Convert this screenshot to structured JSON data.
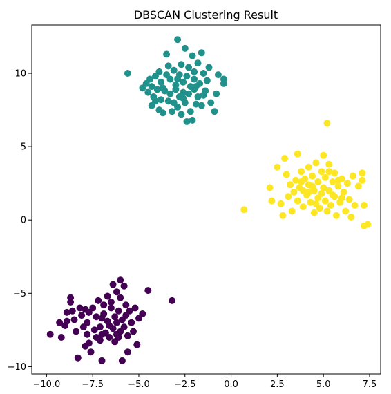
{
  "chart_data": {
    "type": "scatter",
    "title": "DBSCAN Clustering Result",
    "xlabel": "",
    "ylabel": "",
    "xlim": [
      -10.8,
      8.1
    ],
    "ylim": [
      -10.5,
      13.3
    ],
    "xticks": [
      -10.0,
      -7.5,
      -5.0,
      -2.5,
      0.0,
      2.5,
      5.0,
      7.5
    ],
    "xtick_labels": [
      "−10.0",
      "−7.5",
      "−5.0",
      "−2.5",
      "0.0",
      "2.5",
      "5.0",
      "7.5"
    ],
    "yticks": [
      -10,
      -5,
      0,
      5,
      10
    ],
    "ytick_labels": [
      "−10",
      "−5",
      "0",
      "5",
      "10"
    ],
    "grid": false,
    "legend": "none",
    "colors": {
      "cluster_0": "#440154",
      "cluster_1": "#21918c",
      "cluster_2": "#fde725",
      "axis": "#000000",
      "background": "#ffffff"
    },
    "series": [
      {
        "color": "#440154",
        "points": [
          [
            -9.8,
            -7.8
          ],
          [
            -9.3,
            -7.0
          ],
          [
            -9.2,
            -8.0
          ],
          [
            -9.0,
            -7.2
          ],
          [
            -8.9,
            -6.9
          ],
          [
            -8.9,
            -6.3
          ],
          [
            -8.7,
            -5.3
          ],
          [
            -8.7,
            -5.6
          ],
          [
            -8.6,
            -6.2
          ],
          [
            -8.5,
            -6.8
          ],
          [
            -8.4,
            -7.6
          ],
          [
            -8.3,
            -9.4
          ],
          [
            -8.2,
            -6.0
          ],
          [
            -8.1,
            -6.5
          ],
          [
            -8.0,
            -7.3
          ],
          [
            -7.9,
            -8.6
          ],
          [
            -7.9,
            -6.1
          ],
          [
            -7.8,
            -7.0
          ],
          [
            -7.8,
            -7.8
          ],
          [
            -7.7,
            -6.3
          ],
          [
            -7.7,
            -8.4
          ],
          [
            -7.6,
            -9.0
          ],
          [
            -7.5,
            -6.0
          ],
          [
            -7.4,
            -7.5
          ],
          [
            -7.3,
            -6.6
          ],
          [
            -7.3,
            -8.0
          ],
          [
            -7.2,
            -5.5
          ],
          [
            -7.1,
            -7.3
          ],
          [
            -7.1,
            -8.2
          ],
          [
            -7.0,
            -6.7
          ],
          [
            -7.0,
            -9.6
          ],
          [
            -6.9,
            -5.8
          ],
          [
            -6.9,
            -6.4
          ],
          [
            -6.8,
            -7.7
          ],
          [
            -6.7,
            -6.9
          ],
          [
            -6.7,
            -5.2
          ],
          [
            -6.6,
            -7.2
          ],
          [
            -6.6,
            -8.0
          ],
          [
            -6.5,
            -6.0
          ],
          [
            -6.5,
            -5.6
          ],
          [
            -6.4,
            -4.4
          ],
          [
            -6.4,
            -7.4
          ],
          [
            -6.3,
            -6.6
          ],
          [
            -6.3,
            -8.3
          ],
          [
            -6.2,
            -4.9
          ],
          [
            -6.2,
            -7.0
          ],
          [
            -6.1,
            -6.2
          ],
          [
            -6.1,
            -8.0
          ],
          [
            -6.0,
            -4.1
          ],
          [
            -6.0,
            -5.3
          ],
          [
            -6.0,
            -7.6
          ],
          [
            -5.9,
            -6.8
          ],
          [
            -5.9,
            -9.6
          ],
          [
            -5.8,
            -4.5
          ],
          [
            -5.8,
            -7.3
          ],
          [
            -5.7,
            -5.8
          ],
          [
            -5.7,
            -6.5
          ],
          [
            -5.6,
            -9.0
          ],
          [
            -5.6,
            -7.9
          ],
          [
            -5.5,
            -6.2
          ],
          [
            -5.4,
            -7.0
          ],
          [
            -5.3,
            -7.6
          ],
          [
            -5.2,
            -6.0
          ],
          [
            -5.1,
            -8.5
          ],
          [
            -5.0,
            -6.7
          ],
          [
            -4.8,
            -6.4
          ],
          [
            -4.5,
            -4.8
          ],
          [
            -3.2,
            -5.5
          ],
          [
            -6.2,
            -7.8
          ],
          [
            -7.0,
            -7.8
          ]
        ]
      },
      {
        "color": "#21918c",
        "points": [
          [
            -5.6,
            10.0
          ],
          [
            -4.8,
            9.0
          ],
          [
            -4.6,
            9.3
          ],
          [
            -4.5,
            8.7
          ],
          [
            -4.4,
            9.6
          ],
          [
            -4.3,
            9.1
          ],
          [
            -4.3,
            7.8
          ],
          [
            -4.2,
            8.4
          ],
          [
            -4.1,
            9.8
          ],
          [
            -4.0,
            8.9
          ],
          [
            -3.9,
            10.1
          ],
          [
            -3.9,
            7.5
          ],
          [
            -3.8,
            8.2
          ],
          [
            -3.8,
            9.4
          ],
          [
            -3.7,
            7.3
          ],
          [
            -3.6,
            8.8
          ],
          [
            -3.5,
            11.3
          ],
          [
            -3.5,
            9.9
          ],
          [
            -3.4,
            8.1
          ],
          [
            -3.3,
            8.6
          ],
          [
            -3.3,
            9.6
          ],
          [
            -3.2,
            7.4
          ],
          [
            -3.1,
            10.2
          ],
          [
            -3.0,
            8.9
          ],
          [
            -3.0,
            9.2
          ],
          [
            -2.9,
            12.3
          ],
          [
            -2.9,
            7.7
          ],
          [
            -2.8,
            8.4
          ],
          [
            -2.8,
            9.9
          ],
          [
            -2.7,
            10.6
          ],
          [
            -2.7,
            7.2
          ],
          [
            -2.6,
            8.7
          ],
          [
            -2.6,
            9.4
          ],
          [
            -2.5,
            11.7
          ],
          [
            -2.5,
            8.0
          ],
          [
            -2.4,
            6.7
          ],
          [
            -2.4,
            9.8
          ],
          [
            -2.3,
            8.6
          ],
          [
            -2.3,
            10.4
          ],
          [
            -2.2,
            7.4
          ],
          [
            -2.2,
            9.1
          ],
          [
            -2.1,
            6.8
          ],
          [
            -2.1,
            11.2
          ],
          [
            -2.0,
            8.9
          ],
          [
            -2.0,
            9.6
          ],
          [
            -1.9,
            7.9
          ],
          [
            -1.8,
            10.7
          ],
          [
            -1.8,
            8.4
          ],
          [
            -1.7,
            9.3
          ],
          [
            -1.6,
            11.4
          ],
          [
            -1.6,
            7.8
          ],
          [
            -1.5,
            10.0
          ],
          [
            -1.4,
            8.8
          ],
          [
            -1.3,
            9.5
          ],
          [
            -1.2,
            10.4
          ],
          [
            -1.1,
            8.0
          ],
          [
            -0.9,
            7.4
          ],
          [
            -0.8,
            8.6
          ],
          [
            -0.7,
            9.9
          ],
          [
            -0.4,
            9.3
          ],
          [
            -0.4,
            9.6
          ],
          [
            -3.7,
            9.0
          ],
          [
            -2.6,
            8.3
          ],
          [
            -3.1,
            8.0
          ],
          [
            -1.9,
            9.1
          ],
          [
            -2.9,
            9.6
          ],
          [
            -3.4,
            10.5
          ],
          [
            -2.0,
            10.1
          ],
          [
            -1.5,
            8.5
          ],
          [
            -4.1,
            8.1
          ]
        ]
      },
      {
        "color": "#fde725",
        "points": [
          [
            0.7,
            0.7
          ],
          [
            2.1,
            2.2
          ],
          [
            2.2,
            1.3
          ],
          [
            2.5,
            3.6
          ],
          [
            2.7,
            1.1
          ],
          [
            2.8,
            0.3
          ],
          [
            2.9,
            4.2
          ],
          [
            3.0,
            3.1
          ],
          [
            3.1,
            1.6
          ],
          [
            3.2,
            2.4
          ],
          [
            3.3,
            0.6
          ],
          [
            3.4,
            1.9
          ],
          [
            3.5,
            2.7
          ],
          [
            3.6,
            4.5
          ],
          [
            3.6,
            1.3
          ],
          [
            3.7,
            2.2
          ],
          [
            3.8,
            3.3
          ],
          [
            3.9,
            0.9
          ],
          [
            3.9,
            2.0
          ],
          [
            4.0,
            2.8
          ],
          [
            4.1,
            1.7
          ],
          [
            4.2,
            3.6
          ],
          [
            4.2,
            2.4
          ],
          [
            4.3,
            1.2
          ],
          [
            4.4,
            3.0
          ],
          [
            4.5,
            2.0
          ],
          [
            4.5,
            0.5
          ],
          [
            4.6,
            3.9
          ],
          [
            4.7,
            2.6
          ],
          [
            4.7,
            1.5
          ],
          [
            4.8,
            0.8
          ],
          [
            4.9,
            3.3
          ],
          [
            5.0,
            2.2
          ],
          [
            5.0,
            4.4
          ],
          [
            5.1,
            1.3
          ],
          [
            5.1,
            2.9
          ],
          [
            5.2,
            6.6
          ],
          [
            5.2,
            0.6
          ],
          [
            5.3,
            3.8
          ],
          [
            5.3,
            2.0
          ],
          [
            5.4,
            1.0
          ],
          [
            5.5,
            2.6
          ],
          [
            5.6,
            3.2
          ],
          [
            5.6,
            1.6
          ],
          [
            5.7,
            0.3
          ],
          [
            5.8,
            2.3
          ],
          [
            5.9,
            1.2
          ],
          [
            6.0,
            2.8
          ],
          [
            6.1,
            1.9
          ],
          [
            6.2,
            0.6
          ],
          [
            6.3,
            2.5
          ],
          [
            6.4,
            1.4
          ],
          [
            6.5,
            0.2
          ],
          [
            6.6,
            3.0
          ],
          [
            6.7,
            1.0
          ],
          [
            6.9,
            2.3
          ],
          [
            7.1,
            3.2
          ],
          [
            7.1,
            2.7
          ],
          [
            7.2,
            1.0
          ],
          [
            7.2,
            -0.4
          ],
          [
            7.4,
            -0.3
          ],
          [
            4.4,
            2.3
          ],
          [
            4.9,
            1.8
          ],
          [
            5.8,
            2.7
          ],
          [
            3.8,
            2.6
          ],
          [
            4.6,
            1.1
          ],
          [
            5.5,
            1.7
          ],
          [
            6.0,
            1.5
          ],
          [
            4.2,
            1.9
          ],
          [
            5.3,
            3.3
          ]
        ]
      }
    ]
  }
}
